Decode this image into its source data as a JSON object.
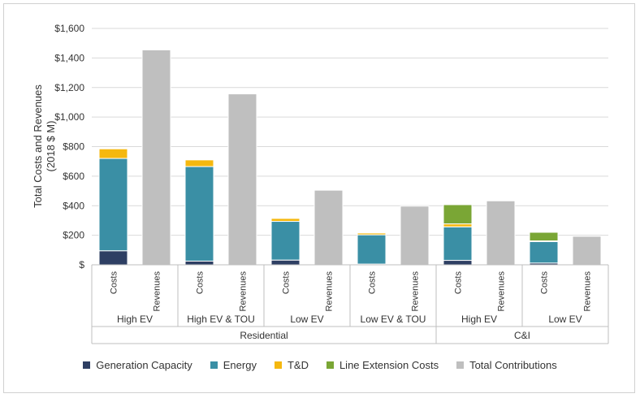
{
  "chart_data": {
    "type": "bar",
    "stacked": true,
    "ylabel_lines": [
      "Total Costs and Revenues",
      "(2018 $ M)"
    ],
    "ylim": [
      0,
      1600
    ],
    "yticks": [
      {
        "value": 0,
        "label": "$"
      },
      {
        "value": 200,
        "label": "$200"
      },
      {
        "value": 400,
        "label": "$400"
      },
      {
        "value": 600,
        "label": "$600"
      },
      {
        "value": 800,
        "label": "$800"
      },
      {
        "value": 1000,
        "label": "$1,000"
      },
      {
        "value": 1200,
        "label": "$1,200"
      },
      {
        "value": 1400,
        "label": "$1,400"
      },
      {
        "value": 1600,
        "label": "$1,600"
      }
    ],
    "grid": true,
    "legend_position": "bottom",
    "categories": [
      "Costs",
      "Revenues",
      "Costs",
      "Revenues",
      "Costs",
      "Revenues",
      "Costs",
      "Revenues",
      "Costs",
      "Revenues",
      "Costs",
      "Revenues"
    ],
    "scenario_groups": [
      {
        "label": "High EV",
        "span": 2
      },
      {
        "label": "High EV & TOU",
        "span": 2
      },
      {
        "label": "Low EV",
        "span": 2
      },
      {
        "label": "Low EV & TOU",
        "span": 2
      },
      {
        "label": "High EV",
        "span": 2
      },
      {
        "label": "Low EV",
        "span": 2
      }
    ],
    "sector_groups": [
      {
        "label": "Residential",
        "span": 8
      },
      {
        "label": "C&I",
        "span": 4
      }
    ],
    "series": [
      {
        "name": "Generation Capacity",
        "color": "#2e3f63",
        "values": [
          95,
          0,
          25,
          0,
          32,
          0,
          5,
          0,
          30,
          0,
          12,
          0
        ]
      },
      {
        "name": "Energy",
        "color": "#3a8fa5",
        "values": [
          625,
          0,
          640,
          0,
          262,
          0,
          198,
          0,
          227,
          0,
          145,
          0
        ]
      },
      {
        "name": "T&D",
        "color": "#f5b80f",
        "values": [
          65,
          0,
          45,
          0,
          20,
          0,
          12,
          0,
          20,
          0,
          5,
          0
        ]
      },
      {
        "name": "Line Extension Costs",
        "color": "#7aa635",
        "values": [
          0,
          0,
          0,
          0,
          0,
          0,
          0,
          0,
          130,
          0,
          58,
          0
        ]
      },
      {
        "name": "Total Contributions",
        "color": "#bfbfbf",
        "values": [
          0,
          1455,
          0,
          1157,
          0,
          505,
          0,
          397,
          0,
          433,
          0,
          193
        ]
      }
    ]
  }
}
